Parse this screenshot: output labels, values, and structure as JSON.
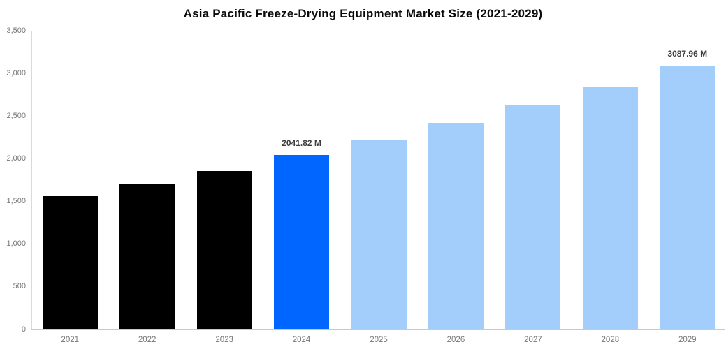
{
  "title": "Asia Pacific Freeze-Drying Equipment Market Size (2021-2029)",
  "chart_data": {
    "type": "bar",
    "title": "Asia Pacific Freeze-Drying Equipment Market Size (2021-2029)",
    "categories": [
      "2021",
      "2022",
      "2023",
      "2024",
      "2025",
      "2026",
      "2027",
      "2028",
      "2029"
    ],
    "values": [
      1560,
      1700,
      1860,
      2041.82,
      2220,
      2420,
      2625,
      2845,
      3087.96
    ],
    "unit": "M",
    "point_labels": [
      "",
      "",
      "",
      "2041.82 M",
      "",
      "",
      "",
      "",
      "3087.96 M"
    ],
    "bar_colors": [
      "#000000",
      "#000000",
      "#000000",
      "#0066FF",
      "#A3CEFB",
      "#A3CEFB",
      "#A3CEFB",
      "#A3CEFB",
      "#A3CEFB"
    ],
    "ylim": [
      0,
      3500
    ],
    "yticks": [
      {
        "value": 0,
        "label": "0"
      },
      {
        "value": 500,
        "label": "500"
      },
      {
        "value": 1000,
        "label": "1,000"
      },
      {
        "value": 1500,
        "label": "1,500"
      },
      {
        "value": 2000,
        "label": "2,000"
      },
      {
        "value": 2500,
        "label": "2,500"
      },
      {
        "value": 3000,
        "label": "3,000"
      },
      {
        "value": 3500,
        "label": "3,500"
      }
    ],
    "xlabel": "",
    "ylabel": "",
    "grid": false,
    "legend": "none"
  },
  "colors": {
    "historical_bar": "#000000",
    "highlight_bar": "#0066FF",
    "forecast_bar": "#A3CEFB",
    "axis_line": "#D9D9D9",
    "baseline": "#C9C9C9",
    "tick_text": "#757575",
    "point_label_text": "#3D3D3D",
    "title_text": "#0A0A0A",
    "background": "#FFFFFF"
  }
}
